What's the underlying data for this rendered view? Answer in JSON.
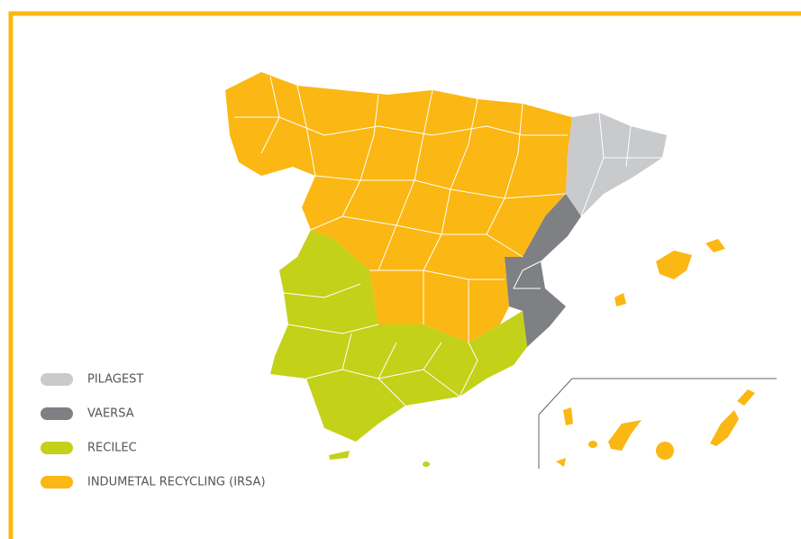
{
  "legend": [
    {
      "label": "PILAGEST",
      "color": "#c9cacc"
    },
    {
      "label": "VAERSA",
      "color": "#7f8083"
    },
    {
      "label": "RECILEC",
      "color": "#c3d118"
    },
    {
      "label": "INDUMETAL RECYCLING (IRSA)",
      "color": "#fbb713"
    }
  ]
}
